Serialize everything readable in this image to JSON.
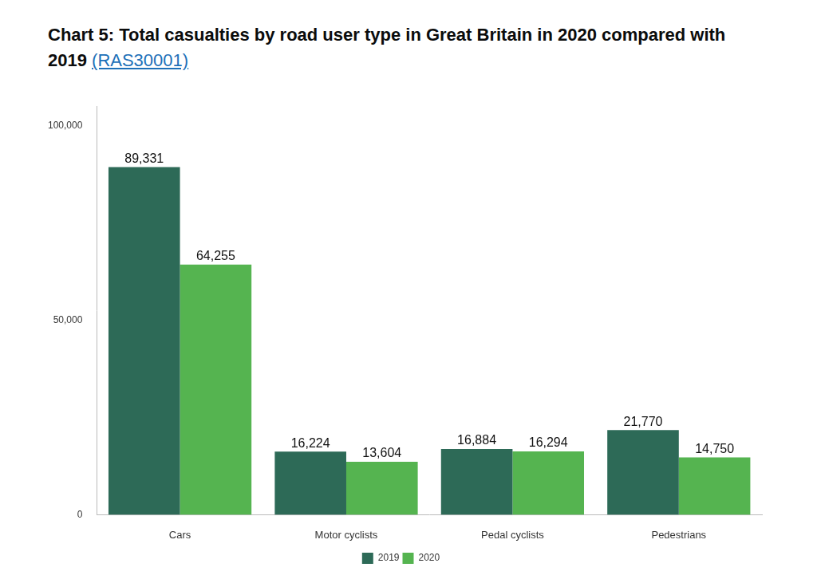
{
  "chart_data": {
    "type": "bar",
    "title": "Chart 5: Total casualties by road user type in Great Britain in 2020 compared with 2019 (RAS30001)",
    "categories": [
      "Cars",
      "Motor cyclists",
      "Pedal cyclists",
      "Pedestrians"
    ],
    "series": [
      {
        "name": "2019",
        "color": "#2d6a57",
        "values": [
          89331,
          16224,
          16884,
          21770
        ],
        "value_labels": [
          "89,331",
          "16,224",
          "16,884",
          "21,770"
        ]
      },
      {
        "name": "2020",
        "color": "#55b450",
        "values": [
          64255,
          13604,
          16294,
          14750
        ],
        "value_labels": [
          "64,255",
          "13,604",
          "16,294",
          "14,750"
        ]
      }
    ],
    "ylim": [
      0,
      105000
    ],
    "yticks": [
      0,
      {
        "value": 50000,
        "label": "50,000"
      },
      {
        "value": 100000,
        "label": "100,000"
      }
    ],
    "grid": false,
    "legend": "bottom",
    "data_labels": true
  }
}
